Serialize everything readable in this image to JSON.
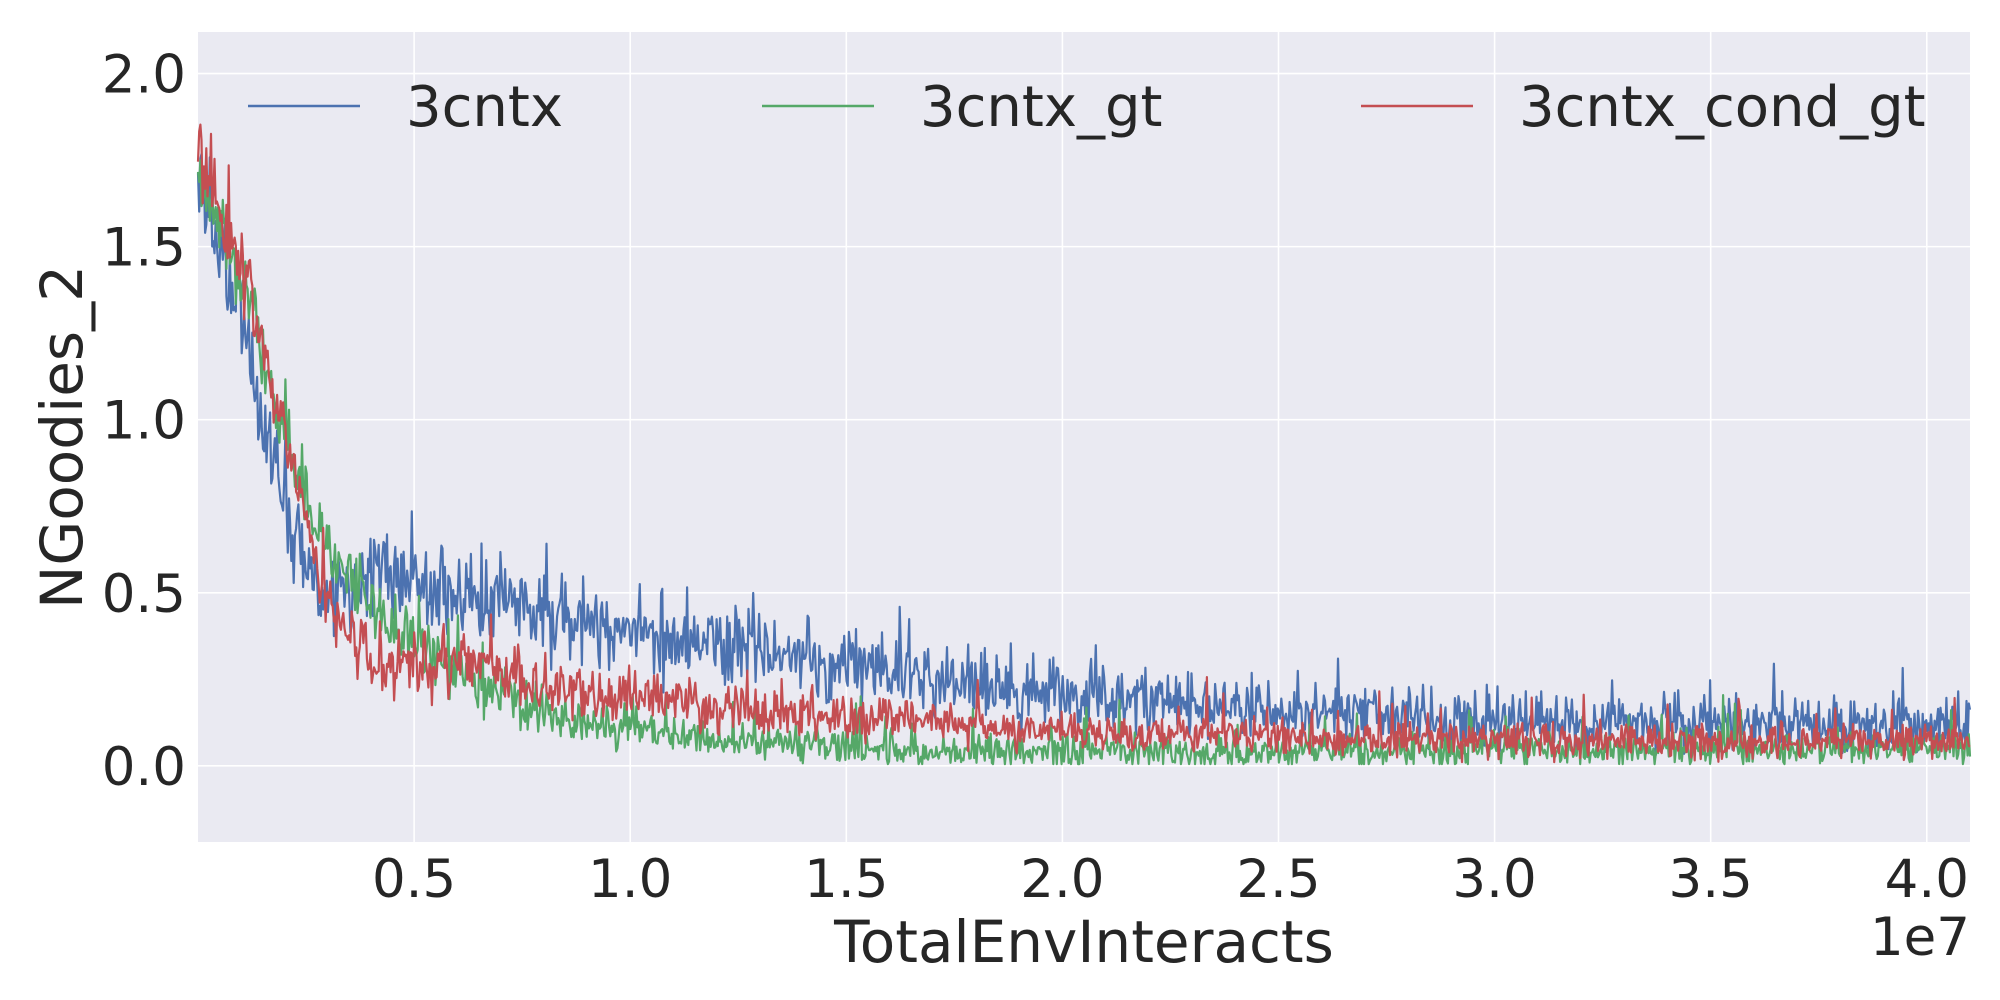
{
  "chart_data": {
    "type": "line",
    "title": "",
    "xlabel": "TotalEnvInteracts",
    "ylabel": "NGoodies_2",
    "x_offset_text": "1e7",
    "xlim": [
      0.0,
      4.1
    ],
    "ylim": [
      -0.22,
      2.12
    ],
    "xticks": [
      0.5,
      1.0,
      1.5,
      2.0,
      2.5,
      3.0,
      3.5,
      4.0
    ],
    "xtick_labels": [
      "0.5",
      "1.0",
      "1.5",
      "2.0",
      "2.5",
      "3.0",
      "3.5",
      "4.0"
    ],
    "yticks": [
      0.0,
      0.5,
      1.0,
      1.5,
      2.0
    ],
    "ytick_labels": [
      "0.0",
      "0.5",
      "1.0",
      "1.5",
      "2.0"
    ],
    "grid": true,
    "legend_position": "top",
    "colors": {
      "background": "#eaeaf2",
      "grid": "#ffffff",
      "text": "#262626"
    },
    "series": [
      {
        "name": "3cntx",
        "color": "#4c72b0",
        "noise": 0.075,
        "x": [
          0.0,
          0.1,
          0.2,
          0.3,
          0.4,
          0.5,
          0.7,
          1.0,
          1.3,
          1.6,
          2.0,
          2.5,
          3.0,
          3.5,
          4.1
        ],
        "y": [
          1.68,
          1.3,
          0.72,
          0.45,
          0.56,
          0.52,
          0.48,
          0.39,
          0.33,
          0.26,
          0.2,
          0.16,
          0.13,
          0.12,
          0.11
        ]
      },
      {
        "name": "3cntx_gt",
        "color": "#55a868",
        "noise": 0.065,
        "x": [
          0.0,
          0.1,
          0.2,
          0.3,
          0.4,
          0.6,
          0.8,
          1.0,
          1.3,
          1.6,
          2.0,
          2.5,
          3.0,
          3.5,
          4.1
        ],
        "y": [
          1.72,
          1.4,
          0.95,
          0.62,
          0.45,
          0.27,
          0.15,
          0.1,
          0.07,
          0.05,
          0.04,
          0.04,
          0.05,
          0.05,
          0.05
        ]
      },
      {
        "name": "3cntx_cond_gt",
        "color": "#c44e52",
        "noise": 0.06,
        "x": [
          0.0,
          0.1,
          0.2,
          0.3,
          0.4,
          0.6,
          0.8,
          1.0,
          1.3,
          1.6,
          2.0,
          2.5,
          3.0,
          3.5,
          4.1
        ],
        "y": [
          1.75,
          1.45,
          0.95,
          0.45,
          0.3,
          0.3,
          0.24,
          0.2,
          0.16,
          0.13,
          0.1,
          0.08,
          0.07,
          0.07,
          0.07
        ]
      }
    ]
  }
}
